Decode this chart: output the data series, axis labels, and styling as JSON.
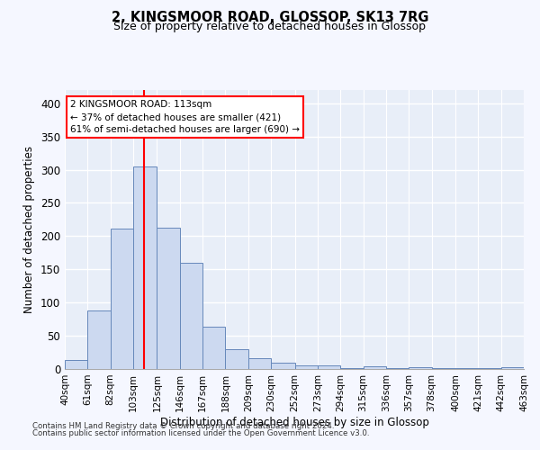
{
  "title_line1": "2, KINGSMOOR ROAD, GLOSSOP, SK13 7RG",
  "title_line2": "Size of property relative to detached houses in Glossop",
  "xlabel": "Distribution of detached houses by size in Glossop",
  "ylabel": "Number of detached properties",
  "bar_color": "#ccd9f0",
  "bar_edge_color": "#6688bb",
  "property_line_x": 113,
  "property_line_color": "red",
  "annotation_line1": "2 KINGSMOOR ROAD: 113sqm",
  "annotation_line2": "← 37% of detached houses are smaller (421)",
  "annotation_line3": "61% of semi-detached houses are larger (690) →",
  "footer_line1": "Contains HM Land Registry data © Crown copyright and database right 2024.",
  "footer_line2": "Contains public sector information licensed under the Open Government Licence v3.0.",
  "bin_edges": [
    40,
    61,
    82,
    103,
    125,
    146,
    167,
    188,
    209,
    230,
    252,
    273,
    294,
    315,
    336,
    357,
    378,
    400,
    421,
    442,
    463
  ],
  "bar_heights": [
    14,
    88,
    211,
    305,
    213,
    160,
    64,
    30,
    16,
    9,
    6,
    5,
    1,
    4,
    2,
    3,
    2,
    2,
    2,
    3
  ],
  "ylim": [
    0,
    420
  ],
  "yticks": [
    0,
    50,
    100,
    150,
    200,
    250,
    300,
    350,
    400
  ],
  "bg_color": "#e8eef8",
  "grid_color": "#ffffff",
  "fig_bg_color": "#f5f7ff"
}
